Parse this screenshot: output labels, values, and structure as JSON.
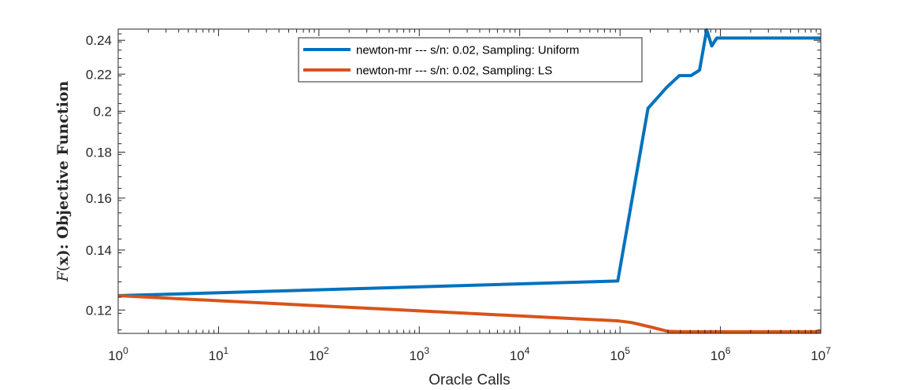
{
  "chart_data": {
    "type": "line",
    "xscale": "log",
    "yscale": "log",
    "xlim": [
      1,
      10000000
    ],
    "ylim": [
      0.113,
      0.247
    ],
    "xlabel": "Oracle Calls",
    "ylabel": {
      "italic": "F",
      "open": "(",
      "bold": "x",
      "rest": "): Objective Function"
    },
    "x_tick_base": "10",
    "x_tick_exponents": [
      "0",
      "1",
      "2",
      "3",
      "4",
      "5",
      "6",
      "7"
    ],
    "y_ticks": [
      0.12,
      0.14,
      0.16,
      0.18,
      0.2,
      0.22,
      0.24
    ],
    "y_tick_labels": [
      "0.12",
      "0.14",
      "0.16",
      "0.18",
      "0.2",
      "0.22",
      "0.24"
    ],
    "grid": false,
    "legend_position": "top-center",
    "series": [
      {
        "name": "newton-mr --- s/n: 0.02, Sampling: Uniform",
        "color": "#0072BD",
        "x": [
          1,
          95000,
          190000,
          290000,
          390000,
          510000,
          620000,
          730000,
          820000,
          920000,
          10000000
        ],
        "y": [
          0.1245,
          0.1293,
          0.2015,
          0.2125,
          0.2192,
          0.2192,
          0.2223,
          0.2465,
          0.2365,
          0.2414,
          0.2414
        ]
      },
      {
        "name": "newton-mr --- s/n: 0.02, Sampling: LS",
        "color": "#D95319",
        "x": [
          1,
          95000,
          130000,
          200000,
          300000,
          400000,
          10000000
        ],
        "y": [
          0.1245,
          0.1167,
          0.1162,
          0.1149,
          0.1136,
          0.1135,
          0.1135
        ]
      }
    ]
  }
}
